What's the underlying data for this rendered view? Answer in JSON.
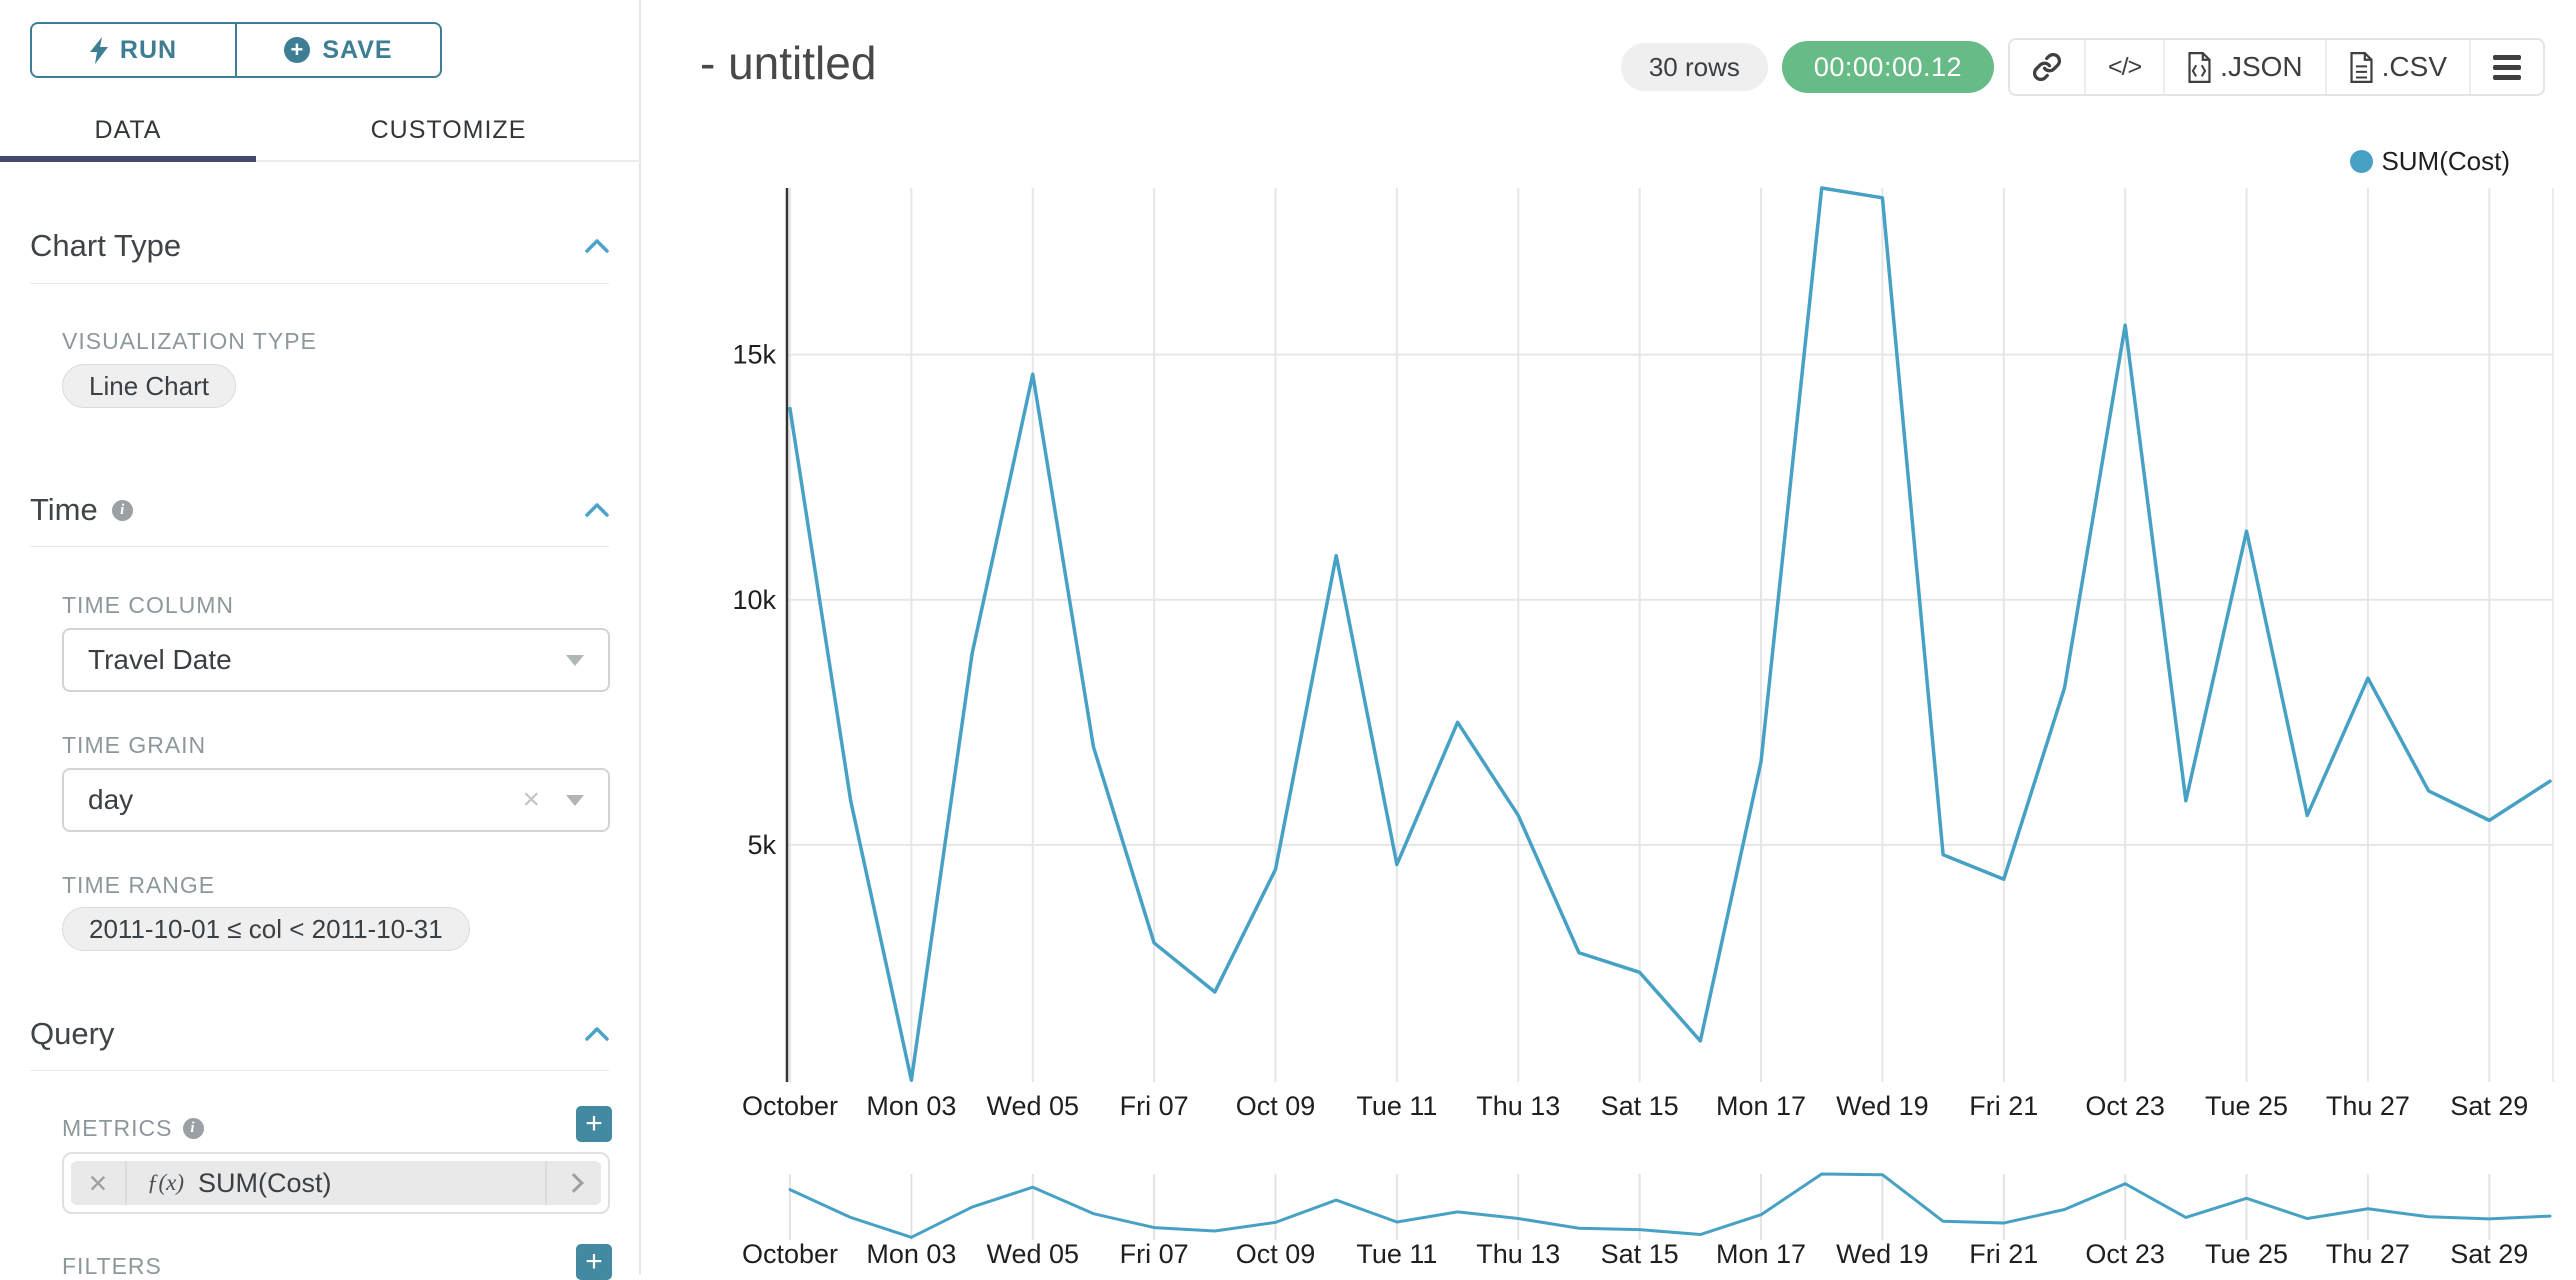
{
  "sidebar": {
    "run_label": "RUN",
    "save_label": "SAVE",
    "tabs": [
      {
        "label": "DATA",
        "active": true
      },
      {
        "label": "CUSTOMIZE",
        "active": false
      }
    ],
    "chart_type": {
      "title": "Chart Type",
      "viz_label": "VISUALIZATION TYPE",
      "viz_value": "Line Chart"
    },
    "time": {
      "title": "Time",
      "column_label": "TIME COLUMN",
      "column_value": "Travel Date",
      "grain_label": "TIME GRAIN",
      "grain_value": "day",
      "range_label": "TIME RANGE",
      "range_value": "2011-10-01 ≤ col < 2011-10-31"
    },
    "query": {
      "title": "Query",
      "metrics_label": "METRICS",
      "metric_fx": "ƒ(x)",
      "metric_name": "SUM(Cost)",
      "filters_label": "FILTERS"
    }
  },
  "header": {
    "title": "- untitled",
    "row_count": "30 rows",
    "timer": "00:00:00.12",
    "json_label": ".JSON",
    "csv_label": ".CSV"
  },
  "colors": {
    "line": "#47a1c4",
    "teal_button": "#3d7e95",
    "timer_green": "#66bb87",
    "tab_underline": "#45496f",
    "gridline": "#e6e6e6",
    "axis": "#333333"
  },
  "chart_data": {
    "type": "line",
    "title": "",
    "xlabel": "",
    "ylabel": "",
    "legend": "SUM(Cost)",
    "legend_position": "top-right",
    "grid": true,
    "y_domain": [
      0,
      18400
    ],
    "y_ticks": [
      {
        "value": 5000,
        "label": "5k"
      },
      {
        "value": 10000,
        "label": "10k"
      },
      {
        "value": 15000,
        "label": "15k"
      }
    ],
    "x_tick_days": [
      1,
      3,
      5,
      7,
      9,
      11,
      13,
      15,
      17,
      19,
      21,
      23,
      25,
      27,
      29
    ],
    "x_tick_labels": [
      "October",
      "Mon 03",
      "Wed 05",
      "Fri 07",
      "Oct 09",
      "Tue 11",
      "Thu 13",
      "Sat 15",
      "Mon 17",
      "Wed 19",
      "Fri 21",
      "Oct 23",
      "Tue 25",
      "Thu 27",
      "Sat 29"
    ],
    "x_unit": "day of October 2011",
    "series": [
      {
        "name": "SUM(Cost)",
        "color": "#47a1c4",
        "x_days": [
          1,
          2,
          3,
          4,
          5,
          6,
          7,
          8,
          9,
          10,
          11,
          12,
          13,
          14,
          15,
          16,
          17,
          18,
          19,
          20,
          21,
          22,
          23,
          24,
          25,
          26,
          27,
          28,
          29,
          30
        ],
        "values": [
          13900,
          5900,
          200,
          8900,
          14600,
          7000,
          3000,
          2000,
          4500,
          10900,
          4600,
          7500,
          5600,
          2800,
          2400,
          1000,
          6700,
          18400,
          18200,
          4800,
          4300,
          8200,
          15600,
          5900,
          11400,
          5600,
          8400,
          6100,
          5500,
          6300
        ]
      }
    ],
    "context_strip": {
      "enabled": true,
      "x_tick_labels": [
        "October",
        "Mon 03",
        "Wed 05",
        "Fri 07",
        "Oct 09",
        "Tue 11",
        "Thu 13",
        "Sat 15",
        "Mon 17",
        "Wed 19",
        "Fri 21",
        "Oct 23",
        "Tue 25",
        "Thu 27",
        "Sat 29"
      ]
    }
  }
}
